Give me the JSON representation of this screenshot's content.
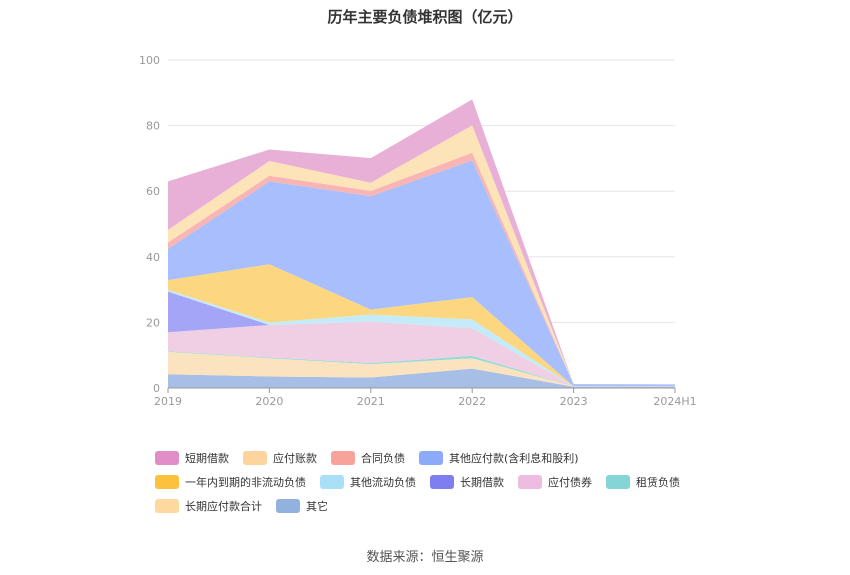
{
  "title": "历年主要负债堆积图（亿元）",
  "source": "数据来源：恒生聚源",
  "chart_data": {
    "type": "area",
    "stacked": true,
    "x": [
      "2019",
      "2020",
      "2021",
      "2022",
      "2023",
      "2024H1"
    ],
    "y_ticks": [
      "0",
      "20",
      "40",
      "60",
      "80",
      "100"
    ],
    "ylim": [
      0,
      100
    ],
    "series": [
      {
        "name": "其它",
        "color": "#a7bfe6",
        "values": [
          4.2,
          3.5,
          3.2,
          5.9,
          0.4,
          0.4
        ]
      },
      {
        "name": "长期应付款合计",
        "color": "#fce3c0",
        "values": [
          6.8,
          5.6,
          4.1,
          3.2,
          0.1,
          0.1
        ]
      },
      {
        "name": "租赁负债",
        "color": "#92dbd9",
        "values": [
          0.2,
          0.2,
          0.3,
          0.7,
          0.0,
          0.0
        ]
      },
      {
        "name": "应付债券",
        "color": "#f0cfe4",
        "values": [
          5.8,
          9.9,
          12.6,
          8.4,
          0.0,
          0.0
        ]
      },
      {
        "name": "长期借款",
        "color": "#a4a5f6",
        "values": [
          12.4,
          0.0,
          0.0,
          0.0,
          0.0,
          0.0
        ]
      },
      {
        "name": "其他流动负债",
        "color": "#c5eaf8",
        "values": [
          0.5,
          0.8,
          2.2,
          2.7,
          0.0,
          0.0
        ]
      },
      {
        "name": "一年内到期的非流动负债",
        "color": "#fcd77f",
        "values": [
          3.0,
          17.7,
          1.5,
          6.8,
          0.0,
          0.0
        ]
      },
      {
        "name": "其他应付款(含利息和股利)",
        "color": "#a9bffd",
        "values": [
          9.5,
          25.3,
          34.6,
          41.7,
          0.7,
          0.6
        ]
      },
      {
        "name": "合同负债",
        "color": "#f8b5b3",
        "values": [
          2.0,
          1.7,
          1.6,
          2.3,
          0.0,
          0.0
        ]
      },
      {
        "name": "应付账款",
        "color": "#fde3b8",
        "values": [
          3.8,
          4.5,
          2.5,
          8.4,
          0.0,
          0.0
        ]
      },
      {
        "name": "短期借款",
        "color": "#e8b0d6",
        "values": [
          14.8,
          3.5,
          7.5,
          7.9,
          0.0,
          0.0
        ]
      }
    ],
    "legend": [
      {
        "name": "短期借款",
        "color": "#e08dc8"
      },
      {
        "name": "应付账款",
        "color": "#fdd49d"
      },
      {
        "name": "合同负债",
        "color": "#f7a29b"
      },
      {
        "name": "其他应付款(含利息和股利)",
        "color": "#8baafa"
      },
      {
        "name": "一年内到期的非流动负债",
        "color": "#fcc23f"
      },
      {
        "name": "其他流动负债",
        "color": "#a9e0f8"
      },
      {
        "name": "长期借款",
        "color": "#7e7ef0"
      },
      {
        "name": "应付债券",
        "color": "#edbce0"
      },
      {
        "name": "租赁负债",
        "color": "#84d6d6"
      },
      {
        "name": "长期应付款合计",
        "color": "#fdd9a0"
      },
      {
        "name": "其它",
        "color": "#93b1df"
      }
    ],
    "legend_position": "bottom",
    "grid": true
  }
}
